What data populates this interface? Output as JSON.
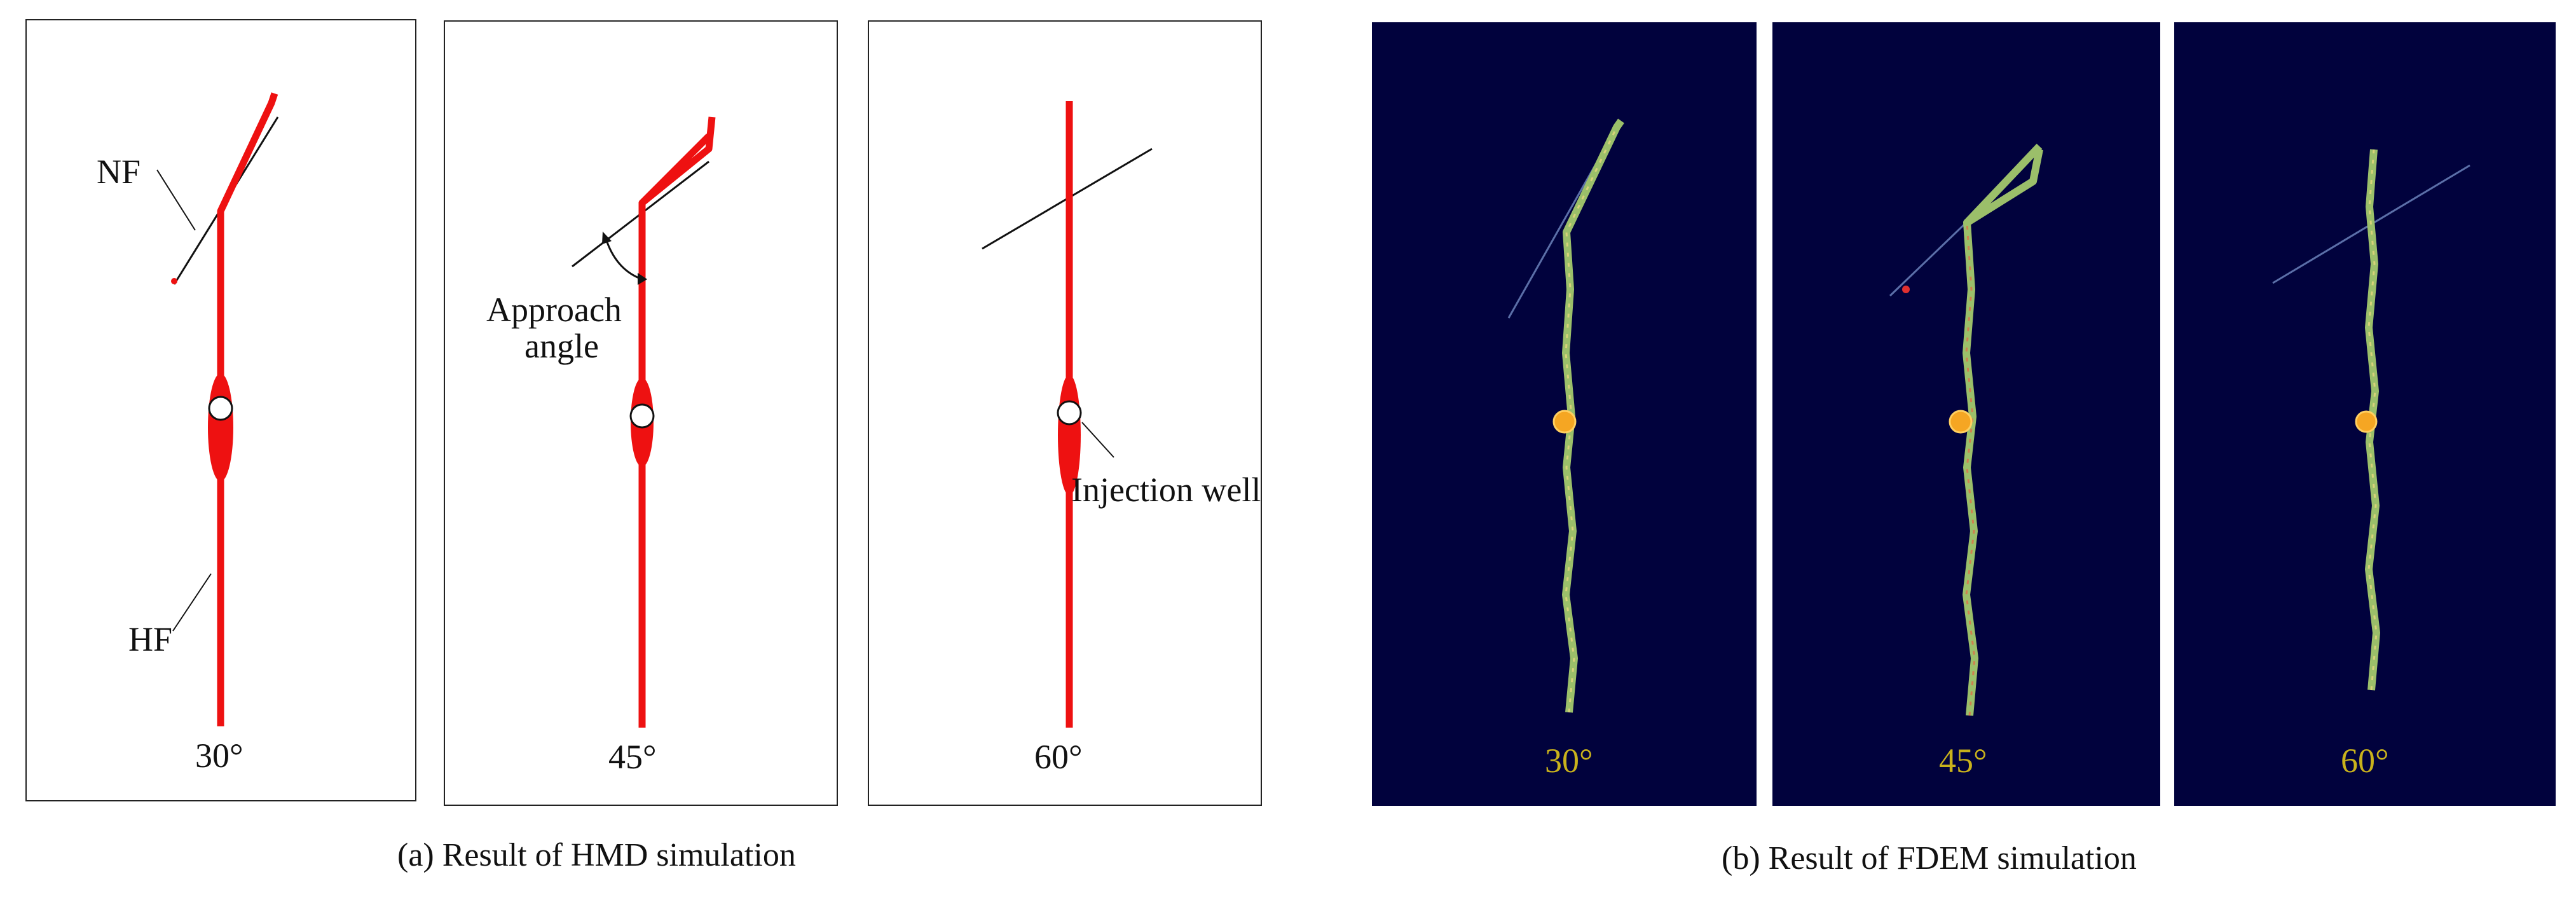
{
  "hmd": {
    "caption": "(a) Result of HMD simulation",
    "panels": [
      {
        "angle": "30°"
      },
      {
        "angle": "45°"
      },
      {
        "angle": "60°"
      }
    ],
    "labels": {
      "nf": "NF",
      "hf": "HF",
      "approach_line1": "Approach",
      "approach_line2": "angle",
      "injection": "Injection well"
    }
  },
  "fdem": {
    "caption": "(b) Result of FDEM simulation",
    "panels": [
      {
        "angle": "30°"
      },
      {
        "angle": "45°"
      },
      {
        "angle": "60°"
      }
    ]
  },
  "colors": {
    "hmd_fracture": "#ee1111",
    "fdem_background": "#01023d",
    "fdem_fracture": "#9bbf6a",
    "fdem_angle_text": "#c9b21c",
    "injection_fdem": "#f5a623"
  }
}
